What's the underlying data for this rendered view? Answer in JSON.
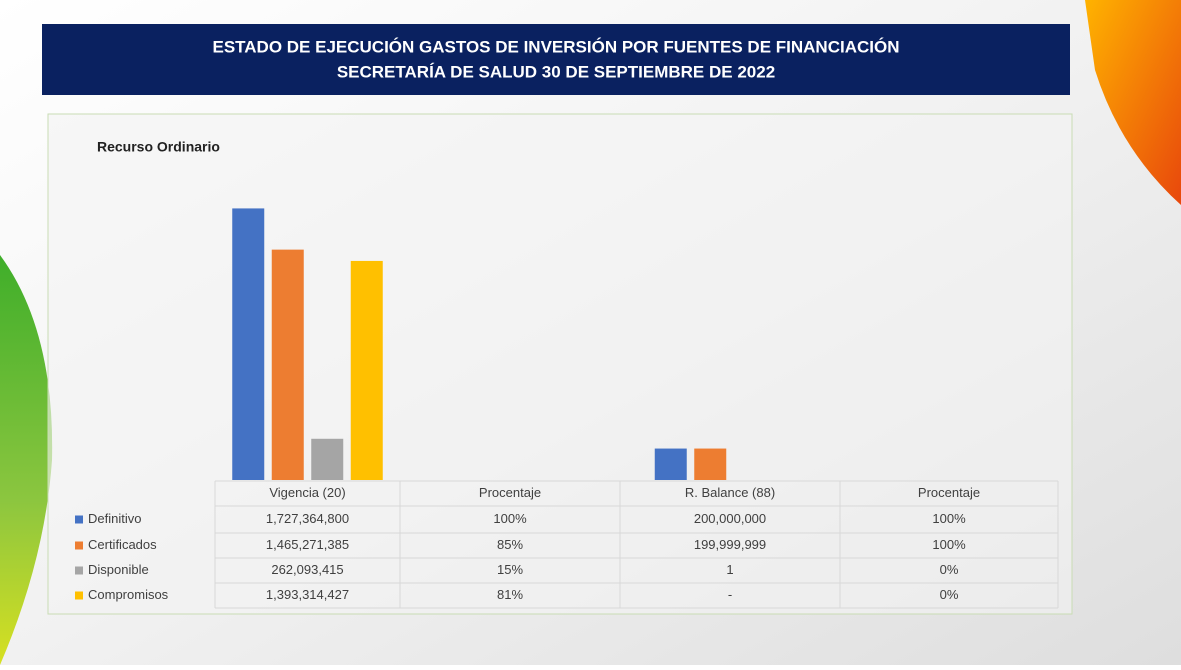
{
  "chart_data": {
    "type": "bar",
    "title": "ESTADO DE EJECUCIÓN GASTOS DE INVERSIÓN POR FUENTES DE FINANCIACIÓN",
    "subtitle": "SECRETARÍA DE SALUD 30 DE SEPTIEMBRE DE 2022",
    "chart_title": "Recurso Ordinario",
    "categories": [
      "Vigencia (20)",
      "Procentaje",
      "R. Balance (88)",
      "Procentaje"
    ],
    "ylim": [
      0,
      1800000000
    ],
    "series": [
      {
        "name": "Definitivo",
        "color": "#4472c4",
        "values": [
          1727364800,
          100,
          200000000,
          100
        ],
        "value_labels": [
          "1,727,364,800",
          "100%",
          "200,000,000",
          "100%"
        ]
      },
      {
        "name": "Certificados",
        "color": "#ed7d31",
        "values": [
          1465271385,
          85,
          199999999,
          100
        ],
        "value_labels": [
          "1,465,271,385",
          "85%",
          "199,999,999",
          "100%"
        ]
      },
      {
        "name": "Disponible",
        "color": "#a5a5a5",
        "values": [
          262093415,
          15,
          1,
          0
        ],
        "value_labels": [
          "262,093,415",
          "15%",
          "1",
          "0%"
        ]
      },
      {
        "name": "Compromisos",
        "color": "#ffc000",
        "values": [
          1393314427,
          81,
          null,
          0
        ],
        "value_labels": [
          "1,393,314,427",
          "81%",
          "-",
          "0%"
        ]
      }
    ]
  }
}
